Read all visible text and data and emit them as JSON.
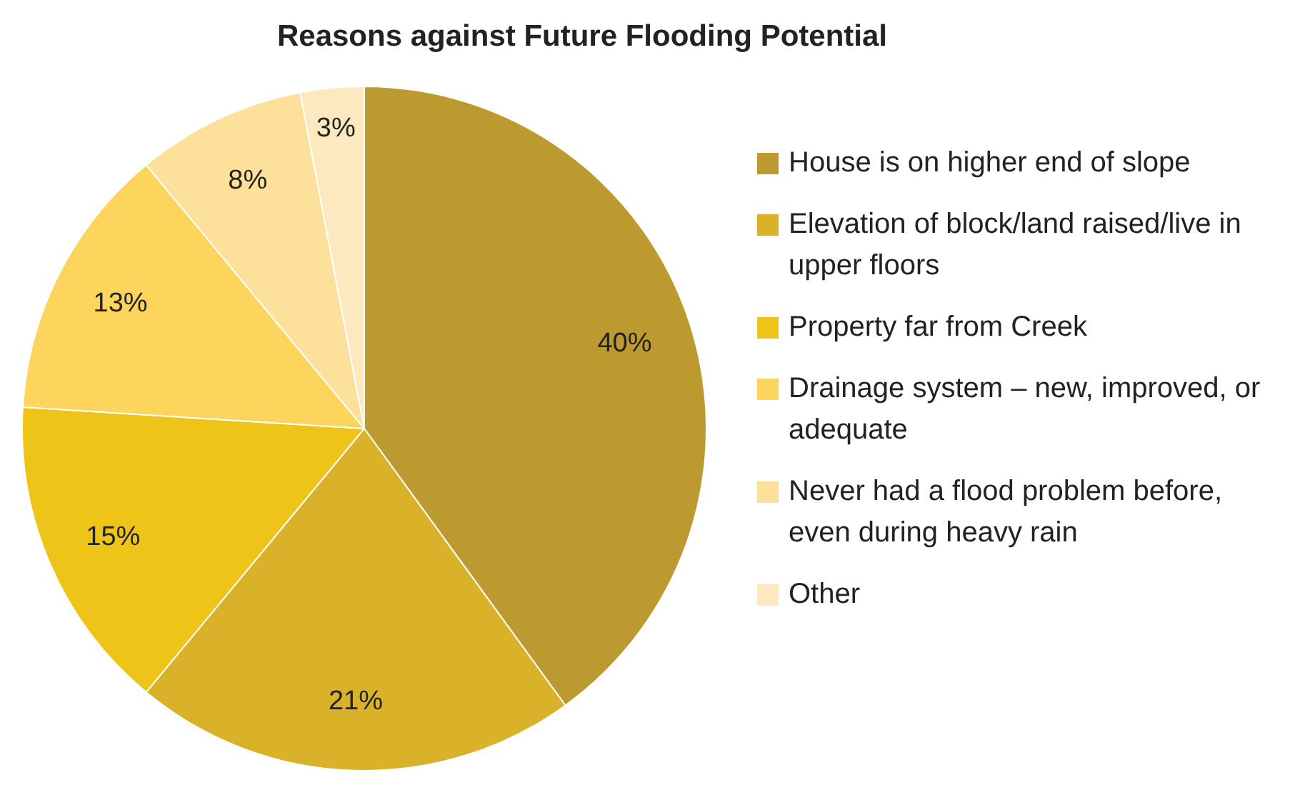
{
  "chart_data": {
    "type": "pie",
    "title": "Reasons against Future Flooding Potential",
    "categories": [
      "House is on higher end of slope",
      "Elevation of block/land raised/live in upper floors",
      "Property far from Creek",
      "Drainage system – new, improved, or adequate",
      "Never had a flood problem before, even during heavy rain",
      "Other"
    ],
    "values": [
      40,
      21,
      15,
      13,
      8,
      3
    ],
    "colors": [
      "#bc9a30",
      "#d9b22a",
      "#eec419",
      "#fdd55c",
      "#fde09a",
      "#fde9bf"
    ],
    "value_labels": [
      "40%",
      "21%",
      "15%",
      "13%",
      "8%",
      "3%"
    ],
    "legend": "right"
  }
}
